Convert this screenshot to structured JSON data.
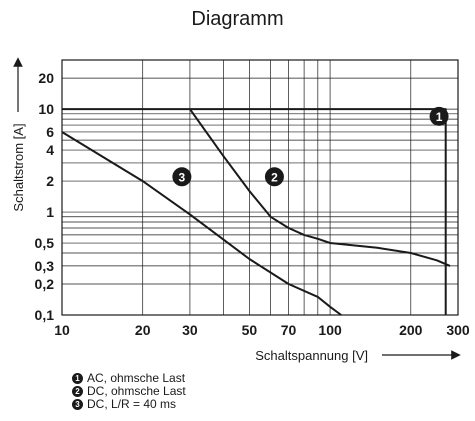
{
  "chart_data": {
    "type": "line",
    "title": "Diagramm",
    "xlabel": "Schaltspannung [V]",
    "ylabel": "Schaltstrom [A]",
    "x_scale": "log",
    "y_scale": "log",
    "xlim": [
      10,
      300
    ],
    "ylim": [
      0.1,
      30
    ],
    "x_ticks": [
      10,
      20,
      30,
      50,
      70,
      100,
      200,
      300
    ],
    "x_tick_labels": [
      "10",
      "20",
      "30",
      "50",
      "70",
      "100",
      "200",
      "300"
    ],
    "y_ticks": [
      0.1,
      0.2,
      0.3,
      0.5,
      1,
      2,
      4,
      6,
      10,
      20
    ],
    "y_tick_labels": [
      "0,1",
      "0,2",
      "0,3",
      "0,5",
      "1",
      "2",
      "4",
      "6",
      "10",
      "20"
    ],
    "grid": true,
    "series": [
      {
        "marker": "1",
        "name": "AC, ohmsche Last",
        "x": [
          10,
          270,
          270
        ],
        "y": [
          10,
          10,
          0.1
        ]
      },
      {
        "marker": "2",
        "name": "DC, ohmsche Last",
        "x": [
          30,
          40,
          50,
          60,
          70,
          80,
          90,
          100,
          150,
          200,
          250,
          280
        ],
        "y": [
          10,
          3.5,
          1.6,
          0.9,
          0.7,
          0.6,
          0.55,
          0.5,
          0.45,
          0.4,
          0.34,
          0.3
        ]
      },
      {
        "marker": "3",
        "name": "DC, L/R = 40 ms",
        "x": [
          10,
          20,
          30,
          50,
          70,
          90,
          100,
          110
        ],
        "y": [
          6,
          2,
          0.95,
          0.35,
          0.2,
          0.15,
          0.12,
          0.1
        ]
      }
    ],
    "legend": [
      {
        "marker": "1",
        "label": "AC, ohmsche Last"
      },
      {
        "marker": "2",
        "label": "DC, ohmsche Last"
      },
      {
        "marker": "3",
        "label": "DC, L/R = 40 ms"
      }
    ]
  }
}
